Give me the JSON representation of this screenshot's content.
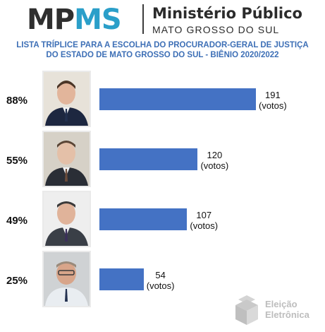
{
  "header": {
    "logo_mp": "MP",
    "logo_ms": "MS",
    "org_name": "Ministério Público",
    "org_sub": "MATO GROSSO DO SUL"
  },
  "chart_title_line1": "LISTA TRÍPLICE PARA A ESCOLHA DO PROCURADOR-GERAL DE JUSTIÇA",
  "chart_title_line2": "DO ESTADO DE MATO GROSSO DO SUL - BIÊNIO 2020/2022",
  "watermark": {
    "line1": "Eleição",
    "line2": "Eletrônica"
  },
  "colors": {
    "bar": "#4472c4",
    "title": "#3d6fb6",
    "logo_accent": "#2b9fc9"
  },
  "chart_data": {
    "type": "bar",
    "orientation": "horizontal",
    "title": "LISTA TRÍPLICE PARA A ESCOLHA DO PROCURADOR-GERAL DE JUSTIÇA DO ESTADO DE MATO GROSSO DO SUL - BIÊNIO 2020/2022",
    "unit": "(votos)",
    "max_value": 191,
    "bars": [
      {
        "percent": "88%",
        "value": 191,
        "value_label": "191",
        "unit_label": "(votos)",
        "photo": "candidate-photo-1"
      },
      {
        "percent": "55%",
        "value": 120,
        "value_label": "120",
        "unit_label": "(votos)",
        "photo": "candidate-photo-2"
      },
      {
        "percent": "49%",
        "value": 107,
        "value_label": "107",
        "unit_label": "(votos)",
        "photo": "candidate-photo-3"
      },
      {
        "percent": "25%",
        "value": 54,
        "value_label": "54",
        "unit_label": "(votos)",
        "photo": "candidate-photo-4"
      }
    ]
  }
}
